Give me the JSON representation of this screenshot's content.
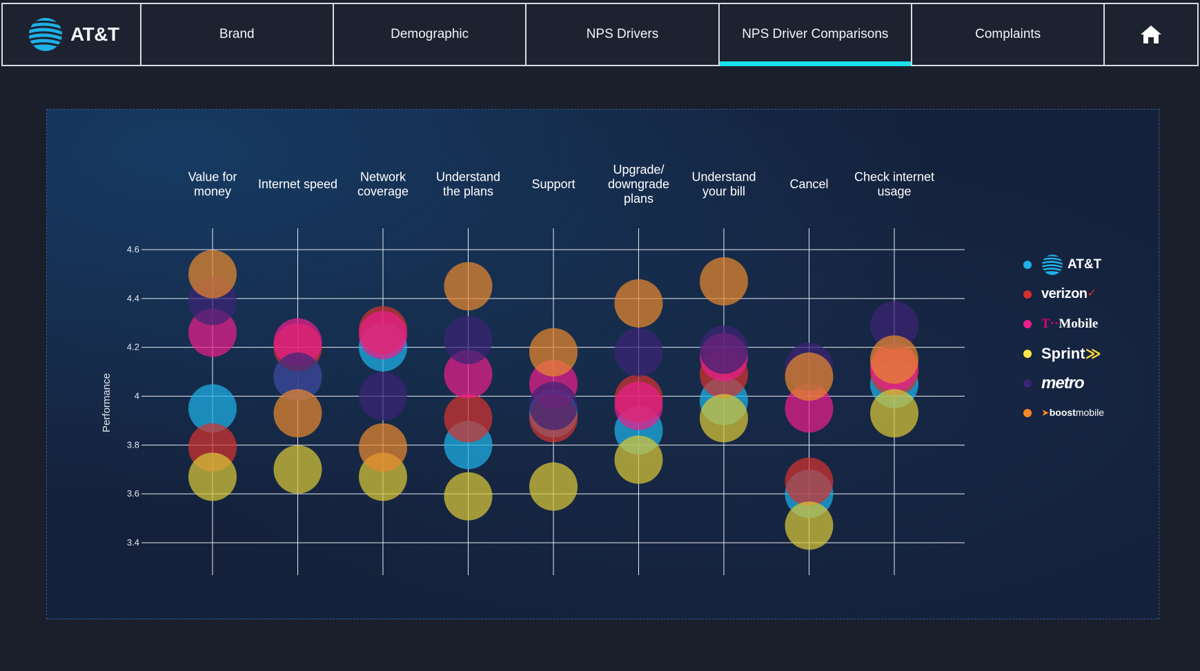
{
  "nav": {
    "logo_text": "AT&T",
    "tabs": [
      "Brand",
      "Demographic",
      "NPS Drivers",
      "NPS Driver Comparisons",
      "Complaints"
    ],
    "active_tab": "NPS Driver Comparisons"
  },
  "legend": {
    "att": "AT&T",
    "verizon": "verizon",
    "tmobile_t": "T",
    "tmobile": "Mobile",
    "sprint": "Sprint",
    "metro": "metro",
    "boost_a": "boost",
    "boost_b": "mobile"
  },
  "chart_data": {
    "type": "scatter",
    "title": "",
    "ylabel": "Performance",
    "xlabel": "",
    "ylim": [
      3.4,
      4.6
    ],
    "yticks": [
      "4.6",
      "4.4",
      "4.2",
      "4",
      "3.8",
      "3.6",
      "3.4"
    ],
    "ytick_values": [
      4.6,
      4.4,
      4.2,
      4.0,
      3.8,
      3.6,
      3.4
    ],
    "categories": [
      [
        "Value for",
        "money"
      ],
      [
        "Internet speed"
      ],
      [
        "Network",
        "coverage"
      ],
      [
        "Understand",
        "the plans"
      ],
      [
        "Support"
      ],
      [
        "Upgrade/",
        "downgrade",
        "plans"
      ],
      [
        "Understand",
        "your bill"
      ],
      [
        "Cancel"
      ],
      [
        "Check internet",
        "usage"
      ]
    ],
    "series": [
      {
        "name": "AT&T",
        "color": "#1fb1e8",
        "values": [
          3.95,
          4.08,
          4.2,
          3.8,
          3.93,
          3.86,
          3.98,
          3.6,
          4.05
        ]
      },
      {
        "name": "Verizon",
        "color": "#d2332f",
        "values": [
          3.79,
          4.2,
          4.27,
          3.91,
          3.91,
          3.99,
          4.09,
          3.65,
          4.1
        ]
      },
      {
        "name": "T-Mobile",
        "color": "#ea1e8c",
        "values": [
          4.26,
          4.22,
          4.25,
          4.09,
          4.05,
          3.96,
          4.16,
          3.95,
          4.12
        ]
      },
      {
        "name": "Sprint",
        "color": "#d8c638",
        "values": [
          3.67,
          3.7,
          3.67,
          3.59,
          3.63,
          3.74,
          3.91,
          3.47,
          3.93
        ]
      },
      {
        "name": "Metro",
        "color": "#3b2475",
        "values": [
          4.39,
          4.08,
          4.0,
          4.23,
          3.96,
          4.18,
          4.19,
          4.12,
          4.29
        ]
      },
      {
        "name": "Boost Mobile",
        "color": "#e8882e",
        "values": [
          4.5,
          3.93,
          3.79,
          4.45,
          4.18,
          4.38,
          4.47,
          4.08,
          4.15
        ]
      }
    ]
  },
  "colors": {
    "accent": "#19e0ea",
    "background": "#1b1f2b"
  }
}
